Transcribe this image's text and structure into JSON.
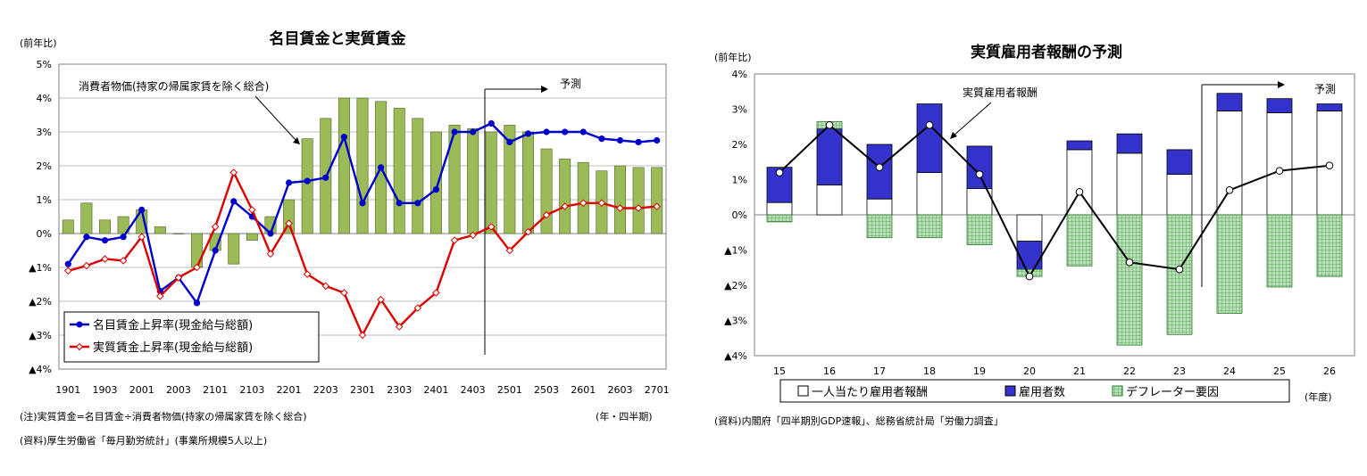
{
  "charts": [
    {
      "id": "left",
      "type": "bar+line",
      "title": "名目賃金と実質賃金",
      "ylabel": "(前年比)",
      "xlabel": "(年・四半期)",
      "ylim": [
        -4,
        5
      ],
      "y_ticks": [
        5,
        4,
        3,
        2,
        1,
        0,
        -1,
        -2,
        -3,
        -4
      ],
      "y_tick_labels": [
        "5%",
        "4%",
        "3%",
        "2%",
        "1%",
        "0%",
        "▲1%",
        "▲2%",
        "▲3%",
        "▲4%"
      ],
      "x_labels": [
        "1901",
        "1903",
        "2001",
        "2003",
        "2101",
        "2103",
        "2201",
        "2203",
        "2301",
        "2303",
        "2401",
        "2403",
        "2501",
        "2503",
        "2601",
        "2603",
        "2701"
      ],
      "bars": {
        "name": "消費者物価(持家の帰属家賃を除く総合)",
        "color": "#9bbb59",
        "values": [
          0.4,
          0.9,
          0.4,
          0.5,
          0.7,
          0.2,
          0.0,
          -1.0,
          -0.5,
          -0.9,
          -0.2,
          0.5,
          1.0,
          2.8,
          3.4,
          4.0,
          4.0,
          3.9,
          3.7,
          3.4,
          3.0,
          3.2,
          3.1,
          3.0,
          3.2,
          3.0,
          2.5,
          2.2,
          2.1,
          1.85,
          2.0,
          1.95,
          1.95
        ]
      },
      "series": [
        {
          "name": "名目賃金上昇率(現金給与総額)",
          "color": "#0000cc",
          "marker": "filled-circle",
          "values": [
            -0.9,
            -0.1,
            -0.2,
            -0.1,
            0.7,
            -1.7,
            -1.3,
            -2.05,
            -0.5,
            0.95,
            0.5,
            0.0,
            1.5,
            1.55,
            1.65,
            2.85,
            0.9,
            1.95,
            0.9,
            0.9,
            1.3,
            3.0,
            3.0,
            3.25,
            2.7,
            2.95,
            3.0,
            3.0,
            3.0,
            2.8,
            2.75,
            2.7,
            2.75
          ]
        },
        {
          "name": "実質賃金上昇率(現金給与総額)",
          "color": "#dd0000",
          "marker": "open-diamond",
          "values": [
            -1.1,
            -0.95,
            -0.75,
            -0.8,
            -0.1,
            -1.85,
            -1.3,
            -1.0,
            0.2,
            1.8,
            0.7,
            -0.6,
            0.3,
            -1.2,
            -1.55,
            -1.75,
            -3.0,
            -1.95,
            -2.75,
            -2.2,
            -1.75,
            -0.2,
            -0.05,
            0.2,
            -0.5,
            0.05,
            0.55,
            0.8,
            0.9,
            0.9,
            0.75,
            0.75,
            0.8
          ]
        }
      ],
      "annotations": {
        "cpi_label": "消費者物価(持家の帰属家賃を除く総合)",
        "forecast": "予測"
      },
      "note": "(注)実質賃金=名目賃金÷消費者物価(持家の帰属家賃を除く総合)",
      "source": "(資料)厚生労働省「毎月勤労統計」(事業所規模5人以上)"
    },
    {
      "id": "right",
      "type": "stacked-bar+line",
      "title": "実質雇用者報酬の予測",
      "ylabel": "(前年比)",
      "xlabel": "(年度)",
      "ylim": [
        -4,
        4
      ],
      "y_ticks": [
        4,
        3,
        2,
        1,
        0,
        -1,
        -2,
        -3,
        -4
      ],
      "y_tick_labels": [
        "4%",
        "3%",
        "2%",
        "1%",
        "0%",
        "▲1%",
        "▲2%",
        "▲3%",
        "▲4%"
      ],
      "categories": [
        "15",
        "16",
        "17",
        "18",
        "19",
        "20",
        "21",
        "22",
        "23",
        "24",
        "25",
        "26"
      ],
      "bar_series": [
        {
          "name": "一人当たり雇用者報酬",
          "color": "#ffffff",
          "values": [
            0.35,
            0.85,
            0.45,
            1.2,
            0.75,
            -0.75,
            1.85,
            1.75,
            1.15,
            2.95,
            2.9,
            2.95
          ]
        },
        {
          "name": "雇用者数",
          "color": "#3333cc",
          "values": [
            1.0,
            1.6,
            1.55,
            1.95,
            1.2,
            -0.8,
            0.25,
            0.55,
            0.7,
            0.5,
            0.4,
            0.2
          ]
        },
        {
          "name": "デフレーター要因",
          "color": "#9bd39b",
          "values": [
            -0.2,
            0.2,
            -0.65,
            -0.65,
            -0.85,
            -0.2,
            -1.45,
            -3.7,
            -3.4,
            -2.8,
            -2.05,
            -1.75
          ]
        }
      ],
      "line": {
        "name": "実質雇用者報酬",
        "color": "#000000",
        "values": [
          1.2,
          2.55,
          1.35,
          2.55,
          1.15,
          -1.75,
          0.65,
          -1.35,
          -1.55,
          0.7,
          1.25,
          1.4
        ]
      },
      "annotations": {
        "line_label": "実質雇用者報酬",
        "forecast": "予測"
      },
      "source": "(資料)内閣府「四半期別GDP速報」、総務省統計局「労働力調査」"
    }
  ]
}
